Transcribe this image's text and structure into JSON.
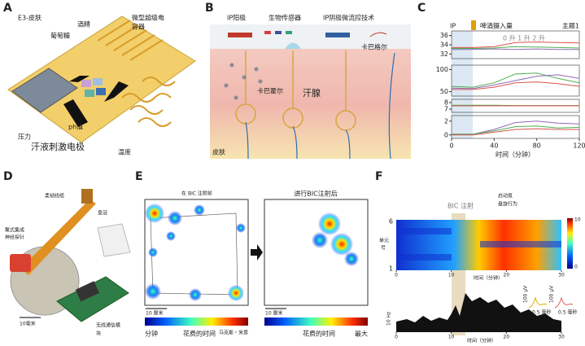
{
  "panels": {
    "a": {
      "label": "A",
      "skin": "E3-皮肤",
      "glucose": "葡萄糖",
      "alcohol": "酒精",
      "supercap": [
        "微型超级电",
        "容器"
      ],
      "pressure": "压力",
      "ph": "ph值",
      "electrode": "汗液刺激电极",
      "temperature": "温度"
    },
    "b": {
      "label": "B",
      "anode": "IP阳极",
      "biosensor": "生物传感器",
      "cathode": "IP阴极微流控技术",
      "carbachol_top": "卡巴格尔",
      "carbachol": "卡巴霍尔",
      "gland": "汗腺",
      "skin": "皮肤"
    },
    "c": {
      "label": "C",
      "ip": "IP",
      "intake": "啤酒摄入量",
      "subject": "主题1",
      "legend": "0 升 1 升 2 升",
      "xlabel": "时间（分钟）",
      "x": [
        0,
        20,
        40,
        60,
        80,
        100,
        120
      ],
      "xlim": [
        0,
        120
      ],
      "xticks": [
        0,
        40,
        80,
        120
      ],
      "plots": [
        {
          "ylim": [
            31,
            37
          ],
          "yticks": [
            32,
            34,
            36
          ],
          "series": [
            {
              "color": "#d9534f",
              "values": [
                33.4,
                33.4,
                33.6,
                34.5,
                34.6,
                34.5,
                34.4
              ]
            },
            {
              "color": "#4caf50",
              "values": [
                33.2,
                33.2,
                33.3,
                33.6,
                33.5,
                33.4,
                33.3
              ]
            },
            {
              "color": "#8e6bb8",
              "values": [
                33.0,
                33.0,
                33.1,
                33.0,
                33.1,
                33.0,
                33.0
              ]
            }
          ]
        },
        {
          "ylim": [
            40,
            110
          ],
          "yticks": [
            50,
            100
          ],
          "series": [
            {
              "color": "#4caf50",
              "values": [
                62,
                60,
                70,
                90,
                92,
                80,
                70
              ]
            },
            {
              "color": "#8e6bb8",
              "values": [
                58,
                57,
                65,
                75,
                85,
                88,
                80
              ]
            },
            {
              "color": "#d9534f",
              "values": [
                55,
                55,
                60,
                70,
                72,
                68,
                62
              ]
            }
          ]
        },
        {
          "ylim": [
            6.5,
            8.5
          ],
          "yticks": [
            7,
            8
          ],
          "series": [
            {
              "color": "#4caf50",
              "values": [
                7.6,
                7.6,
                7.6,
                7.55,
                7.55,
                7.55,
                7.55
              ]
            },
            {
              "color": "#d9534f",
              "values": [
                7.5,
                7.5,
                7.5,
                7.5,
                7.5,
                7.5,
                7.5
              ]
            }
          ]
        },
        {
          "ylim": [
            -0.5,
            2.8
          ],
          "yticks": [
            0,
            2
          ],
          "series": [
            {
              "color": "#8e6bb8",
              "values": [
                0.1,
                0.1,
                0.8,
                1.8,
                2.0,
                1.7,
                1.6
              ]
            },
            {
              "color": "#4caf50",
              "values": [
                0.1,
                0.1,
                0.6,
                1.2,
                1.3,
                1.0,
                1.1
              ]
            },
            {
              "color": "#d9534f",
              "values": [
                0,
                0,
                0.4,
                0.8,
                0.9,
                0.8,
                0.8
              ]
            }
          ]
        }
      ]
    },
    "d": {
      "label": "D",
      "cable": "柔韧线缆",
      "crown": "皇冠",
      "probe": [
        "聚式集成",
        "神经探针"
      ],
      "scale": "10毫米",
      "wireless": [
        "无线通信模",
        "块"
      ]
    },
    "e": {
      "label": "E",
      "before": "在 BIC 注射前",
      "after": "进行BIC注射后",
      "scale_left": "10 厘米",
      "scale_right": "10 厘米",
      "min": "分钟",
      "time_left": "花费的时间",
      "mid": "马克斯・米恩",
      "time_right": "花费的时间",
      "max": "最大"
    },
    "f": {
      "label": "F",
      "bic": "BIC 注射",
      "pump": "启动泵",
      "circling": "盘旋行为",
      "unit_top": "6",
      "unit_bottom": "1",
      "unit_label": [
        "单元",
        "号"
      ],
      "cbar_top": "10",
      "cbar_bottom": "0",
      "ticks_top": [
        0,
        10,
        20,
        30
      ],
      "ticks_bottom": [
        0,
        10,
        20,
        30
      ],
      "xlabel_top": "时间（分钟）",
      "xlabel_bottom": "时间（分钟）",
      "hz": "10 Hz",
      "uv1": "100 μV",
      "ms1": "0.5 毫秒",
      "uv2": "100 μV",
      "ms2": "0.5 毫秒"
    }
  }
}
